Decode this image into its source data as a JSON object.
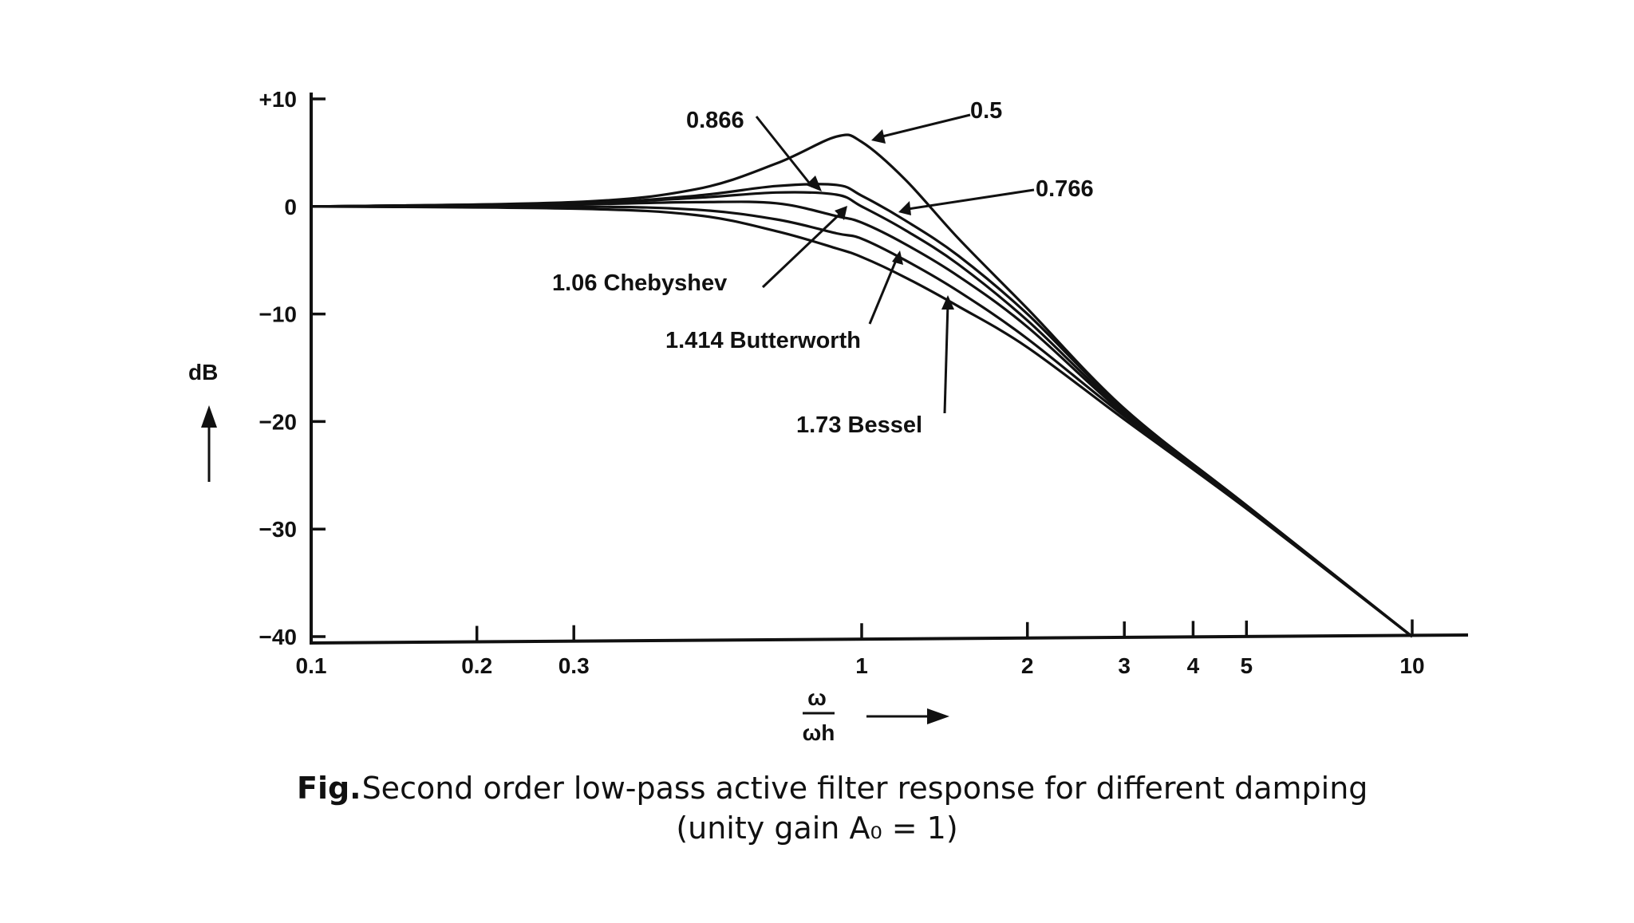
{
  "chart_data": {
    "type": "line",
    "xscale": "log",
    "xlim": [
      0.1,
      10
    ],
    "ylim": [
      -40,
      10
    ],
    "x_ticks": [
      0.1,
      0.2,
      0.3,
      1,
      2,
      3,
      4,
      5,
      10
    ],
    "x_tick_labels": [
      "0.1",
      "0.2",
      "0.3",
      "1",
      "2",
      "3",
      "4",
      "5",
      "10"
    ],
    "y_ticks": [
      10,
      0,
      -10,
      -20,
      -30,
      -40
    ],
    "y_tick_labels": [
      "+10",
      "0",
      "−10",
      "−20",
      "−30",
      "−40"
    ],
    "ylabel": "dB",
    "xlabel_numerator": "ω",
    "xlabel_denominator": "ωh",
    "grid": false,
    "series": [
      {
        "name": "0.5",
        "damping": 0.5,
        "x": [
          0.1,
          0.3,
          0.5,
          0.7,
          0.9,
          1.0,
          1.2,
          1.5,
          2,
          3,
          5,
          10
        ],
        "values": [
          0.0,
          0.4,
          1.6,
          4.0,
          6.5,
          6.0,
          2.5,
          -3.0,
          -9.5,
          -18.8,
          -27.8,
          -40.0
        ]
      },
      {
        "name": "0.766",
        "damping": 0.766,
        "x": [
          0.1,
          0.3,
          0.5,
          0.7,
          0.9,
          1.0,
          1.2,
          1.5,
          2,
          3,
          5,
          10
        ],
        "values": [
          0.0,
          0.3,
          1.0,
          1.9,
          2.0,
          1.0,
          -1.3,
          -4.6,
          -10.0,
          -18.9,
          -27.8,
          -40.0
        ]
      },
      {
        "name": "0.866",
        "damping": 0.866,
        "x": [
          0.1,
          0.3,
          0.5,
          0.7,
          0.9,
          1.0,
          1.2,
          1.5,
          2,
          3,
          5,
          10
        ],
        "values": [
          0.0,
          0.3,
          0.8,
          1.3,
          1.1,
          0.0,
          -2.2,
          -5.4,
          -10.6,
          -19.1,
          -27.9,
          -40.0
        ]
      },
      {
        "name": "1.06 Chebyshev",
        "damping": 1.06,
        "x": [
          0.1,
          0.3,
          0.5,
          0.7,
          0.9,
          1.0,
          1.2,
          1.5,
          2,
          3,
          5,
          10
        ],
        "values": [
          0.0,
          0.2,
          0.4,
          0.3,
          -0.9,
          -1.5,
          -3.5,
          -6.5,
          -11.2,
          -19.3,
          -28.0,
          -40.0
        ]
      },
      {
        "name": "1.414 Butterworth",
        "damping": 1.414,
        "x": [
          0.1,
          0.3,
          0.5,
          0.7,
          0.9,
          1.0,
          1.2,
          1.5,
          2,
          3,
          5,
          10
        ],
        "values": [
          0.0,
          0.0,
          -0.3,
          -1.2,
          -2.5,
          -3.0,
          -5.0,
          -7.9,
          -12.3,
          -19.5,
          -28.0,
          -40.0
        ]
      },
      {
        "name": "1.73 Bessel",
        "damping": 1.73,
        "x": [
          0.1,
          0.3,
          0.5,
          0.7,
          0.9,
          1.0,
          1.2,
          1.5,
          2,
          3,
          5,
          10
        ],
        "values": [
          0.0,
          -0.2,
          -0.8,
          -2.3,
          -3.9,
          -4.7,
          -6.6,
          -9.3,
          -13.1,
          -19.8,
          -28.1,
          -40.0
        ]
      }
    ],
    "annotations": [
      "0.866",
      "0.5",
      "0.766",
      "1.06 Chebyshev",
      "1.414 Butterworth",
      "1.73 Bessel"
    ]
  },
  "caption": {
    "fig_label": "Fig.",
    "line1": "Second order low-pass active filter response for different damping",
    "line2": "(unity gain A₀ = 1)"
  }
}
